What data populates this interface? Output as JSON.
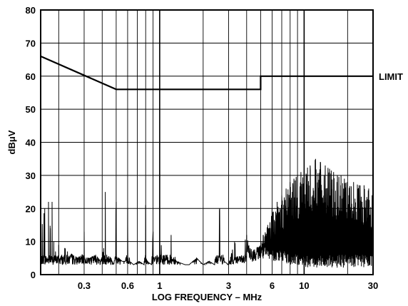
{
  "chart_data": {
    "type": "line",
    "xlabel": "LOG FREQUENCY – MHz",
    "ylabel": "dBμV",
    "xscale": "log",
    "xlim": [
      0.15,
      30
    ],
    "ylim": [
      0,
      80
    ],
    "grid": true,
    "x_tick_labels": [
      "0.3",
      "0.6",
      "1",
      "3",
      "6",
      "10",
      "30"
    ],
    "x_tick_values": [
      0.3,
      0.6,
      1,
      3,
      6,
      10,
      30
    ],
    "y_tick_labels": [
      "0",
      "10",
      "20",
      "30",
      "40",
      "50",
      "60",
      "70",
      "80"
    ],
    "y_tick_values": [
      0,
      10,
      20,
      30,
      40,
      50,
      60,
      70,
      80
    ],
    "series": [
      {
        "name": "LIMIT",
        "x": [
          0.15,
          0.5,
          5,
          5,
          30
        ],
        "y": [
          66,
          56,
          56,
          60,
          60
        ]
      },
      {
        "name": "",
        "x": [
          0.15,
          0.16,
          0.17,
          0.175,
          0.18,
          0.185,
          0.19,
          0.2,
          0.21,
          0.22,
          0.23,
          0.25,
          0.27,
          0.29,
          0.3,
          0.31,
          0.33,
          0.36,
          0.39,
          0.41,
          0.42,
          0.43,
          0.46,
          0.48,
          0.5,
          0.52,
          0.55,
          0.58,
          0.6,
          0.62,
          0.66,
          0.72,
          0.78,
          0.8,
          0.82,
          0.88,
          0.9,
          0.92,
          1.0,
          1.1,
          1.2,
          1.3,
          1.5,
          1.6,
          1.8,
          2.0,
          2.2,
          2.4,
          2.6,
          2.8,
          3.0,
          3.3,
          3.6,
          4.0,
          4.4,
          4.8,
          5.2,
          5.6,
          6.0,
          6.5,
          7.0,
          7.5,
          8.0,
          8.5,
          9.0,
          9.5,
          10.0,
          11.0,
          12.0,
          13.0,
          14.0,
          15.0,
          16.0,
          17.0,
          18.0,
          19.0,
          20.0,
          22.0,
          24.0,
          26.0,
          28.0,
          30.0
        ],
        "y": [
          12,
          20,
          22,
          14,
          22,
          10,
          7,
          9,
          6,
          8,
          7,
          6,
          5,
          6,
          13,
          5,
          5,
          6,
          4,
          8,
          25,
          6,
          5,
          3,
          22,
          5,
          4,
          4,
          20,
          4,
          3,
          4,
          3,
          21,
          4,
          3,
          13,
          4,
          10,
          6,
          12,
          4,
          3,
          3,
          5,
          3,
          4,
          3,
          20,
          4,
          3,
          10,
          5,
          12,
          6,
          8,
          12,
          15,
          20,
          22,
          24,
          26,
          28,
          29,
          30,
          31,
          32,
          33,
          35,
          34,
          33,
          32,
          31,
          30,
          30,
          29,
          28,
          28,
          27,
          27,
          26,
          25
        ]
      }
    ],
    "annotations": [
      {
        "text": "LIMIT"
      }
    ]
  }
}
